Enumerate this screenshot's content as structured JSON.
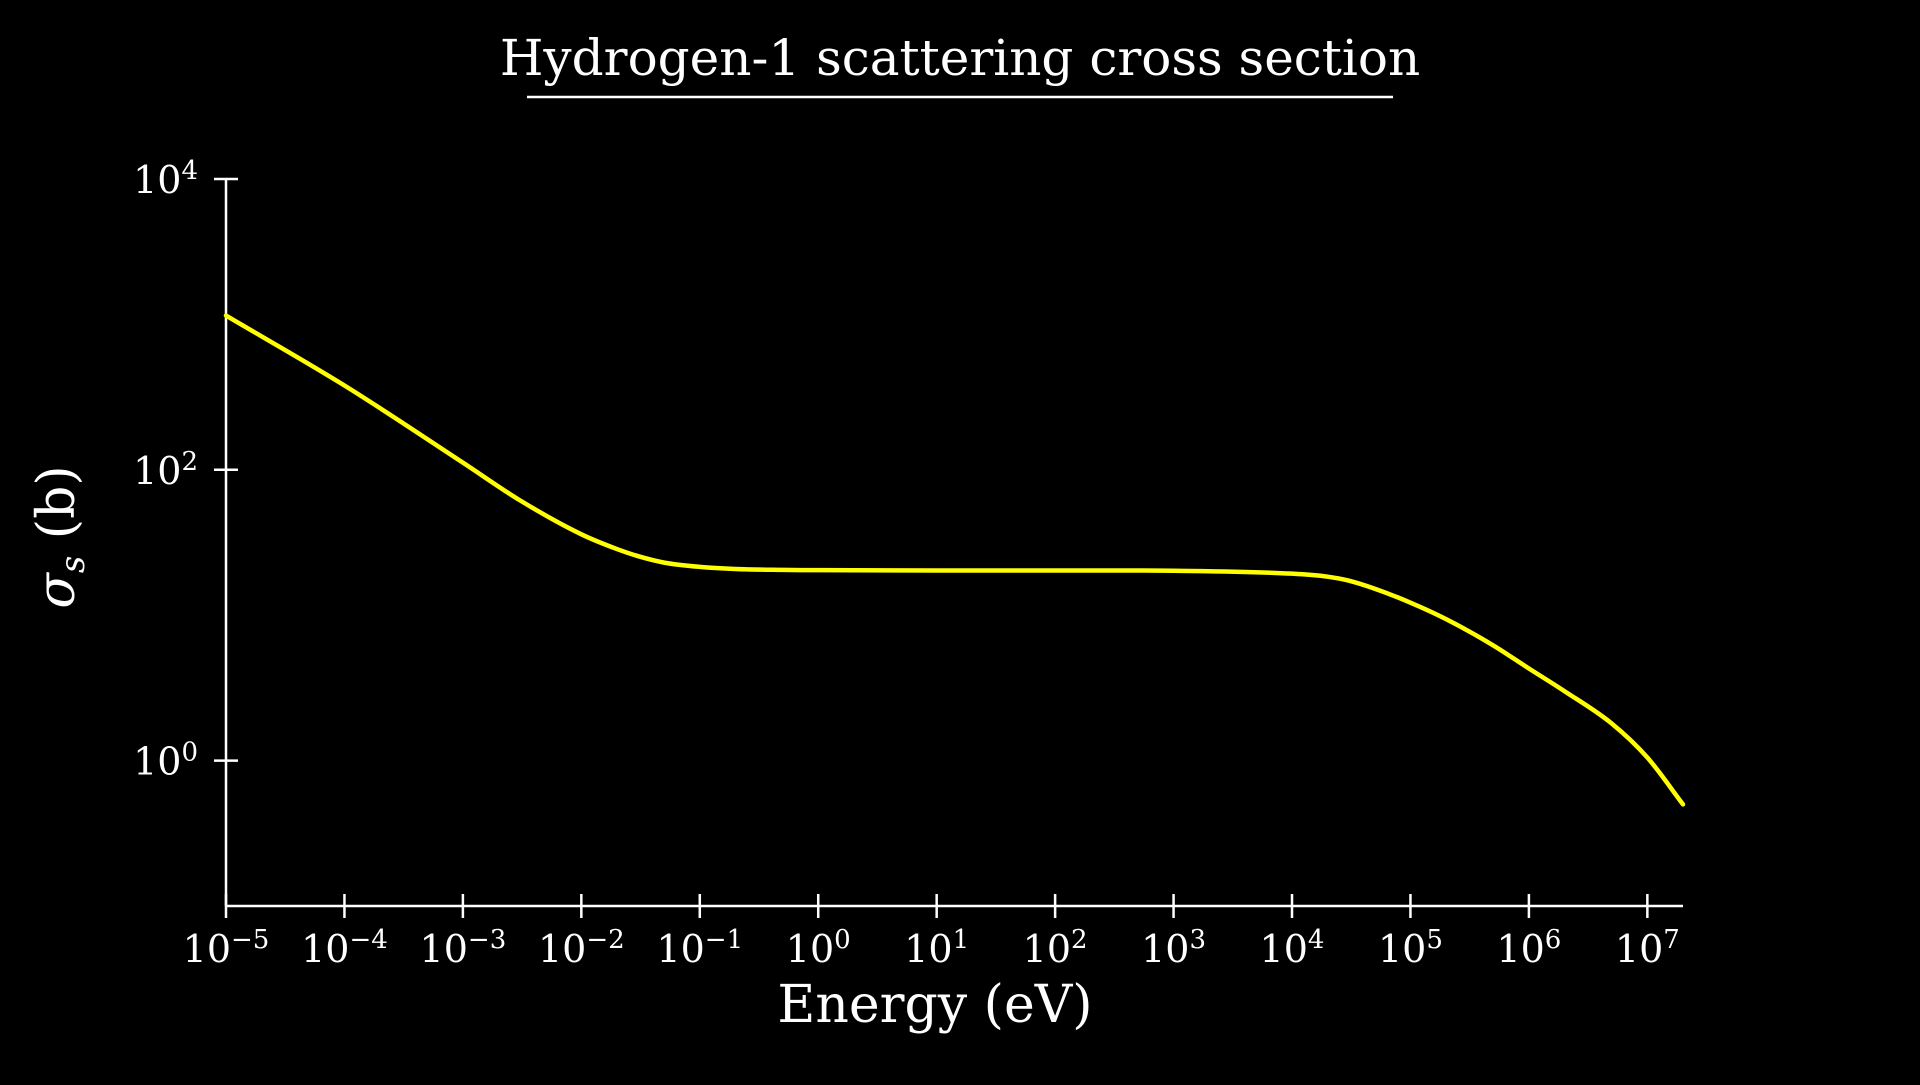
{
  "chart_data": {
    "type": "line",
    "title": "Hydrogen-1 scattering cross section",
    "xlabel": "Energy (eV)",
    "ylabel": "σ_s (b)",
    "xscale": "log",
    "yscale": "log",
    "xlim": [
      1e-05,
      20000000.0
    ],
    "ylim": [
      0.1,
      10000
    ],
    "x_ticks": [
      {
        "value": 1e-05,
        "base": "10",
        "exp": "−5"
      },
      {
        "value": 0.0001,
        "base": "10",
        "exp": "−4"
      },
      {
        "value": 0.001,
        "base": "10",
        "exp": "−3"
      },
      {
        "value": 0.01,
        "base": "10",
        "exp": "−2"
      },
      {
        "value": 0.1,
        "base": "10",
        "exp": "−1"
      },
      {
        "value": 1,
        "base": "10",
        "exp": "0"
      },
      {
        "value": 10,
        "base": "10",
        "exp": "1"
      },
      {
        "value": 100,
        "base": "10",
        "exp": "2"
      },
      {
        "value": 1000,
        "base": "10",
        "exp": "3"
      },
      {
        "value": 10000,
        "base": "10",
        "exp": "4"
      },
      {
        "value": 100000,
        "base": "10",
        "exp": "5"
      },
      {
        "value": 1000000,
        "base": "10",
        "exp": "6"
      },
      {
        "value": 10000000,
        "base": "10",
        "exp": "7"
      }
    ],
    "y_ticks": [
      {
        "value": 1,
        "base": "10",
        "exp": "0"
      },
      {
        "value": 100,
        "base": "10",
        "exp": "2"
      },
      {
        "value": 10000,
        "base": "10",
        "exp": "4"
      }
    ],
    "series": [
      {
        "color": "#ffff00",
        "x": [
          1e-05,
          0.0001,
          0.001,
          0.003,
          0.01,
          0.02,
          0.03,
          0.05,
          0.1,
          0.2,
          0.5,
          1,
          10,
          100,
          1000,
          10000,
          20000,
          30000,
          50000,
          100000,
          200000,
          500000,
          1000000,
          2000000,
          5000000,
          10000000,
          20000000
        ],
        "y": [
          1150,
          380,
          112,
          62,
          36,
          28.5,
          25.5,
          23,
          21.5,
          20.8,
          20.5,
          20.4,
          20.3,
          20.3,
          20.2,
          19.3,
          18.4,
          17.3,
          15.2,
          12.2,
          9.4,
          6.2,
          4.3,
          3.0,
          1.8,
          1.05,
          0.5
        ]
      }
    ]
  }
}
